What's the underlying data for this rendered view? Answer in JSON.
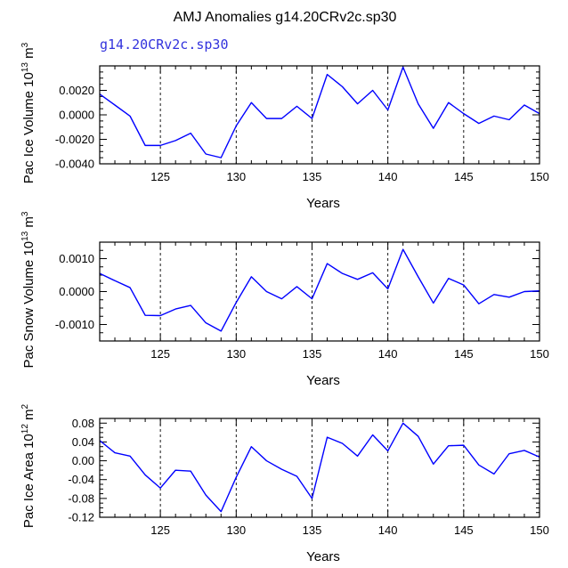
{
  "figure": {
    "title": "AMJ Anomalies g14.20CRv2c.sp30",
    "subtitle": "g14.20CRv2c.sp30",
    "line_color": "#0000ff",
    "subtitle_color": "#3333dd"
  },
  "chart_data": [
    {
      "type": "line",
      "ylabel_parts": [
        "Pac Ice Volume 10",
        "13",
        " m",
        "3"
      ],
      "xlabel": "Years",
      "xlim": [
        121,
        150
      ],
      "ylim": [
        -0.004,
        0.004
      ],
      "xticks": [
        125,
        130,
        135,
        140,
        145,
        150
      ],
      "yticks": [
        -0.004,
        -0.002,
        0.0,
        0.002
      ],
      "ytick_labels": [
        "-0.0040",
        "-0.0020",
        "0.0000",
        "0.0020"
      ],
      "vlines": [
        125,
        130,
        135,
        140,
        145
      ],
      "x": [
        121,
        122,
        123,
        124,
        125,
        126,
        127,
        128,
        129,
        130,
        131,
        132,
        133,
        134,
        135,
        136,
        137,
        138,
        139,
        140,
        141,
        142,
        143,
        144,
        145,
        146,
        147,
        148,
        149,
        150
      ],
      "y": [
        0.0017,
        0.0008,
        -0.0001,
        -0.0025,
        -0.0025,
        -0.0021,
        -0.0015,
        -0.0032,
        -0.0035,
        -0.0009,
        0.001,
        -0.0003,
        -0.0003,
        0.0007,
        -0.0003,
        0.0033,
        0.0023,
        0.0009,
        0.002,
        0.0004,
        0.0039,
        0.0009,
        -0.0011,
        0.001,
        0.0001,
        -0.0007,
        -0.0001,
        -0.0004,
        0.0008,
        0.0001
      ]
    },
    {
      "type": "line",
      "ylabel_parts": [
        "Pac Snow Volume 10",
        "13",
        " m",
        "3"
      ],
      "xlabel": "Years",
      "xlim": [
        121,
        150
      ],
      "ylim": [
        -0.0015,
        0.0015
      ],
      "xticks": [
        125,
        130,
        135,
        140,
        145,
        150
      ],
      "yticks": [
        -0.001,
        0.0,
        0.001
      ],
      "ytick_labels": [
        "-0.0010",
        "0.0000",
        "0.0010"
      ],
      "vlines": [
        125,
        130,
        135,
        140,
        145
      ],
      "x": [
        121,
        122,
        123,
        124,
        125,
        126,
        127,
        128,
        129,
        130,
        131,
        132,
        133,
        134,
        135,
        136,
        137,
        138,
        139,
        140,
        141,
        142,
        143,
        144,
        145,
        146,
        147,
        148,
        149,
        150
      ],
      "y": [
        0.00055,
        0.00033,
        0.00012,
        -0.00072,
        -0.00073,
        -0.00053,
        -0.00042,
        -0.00095,
        -0.0012,
        -0.00033,
        0.00045,
        0.0,
        -0.00022,
        0.00015,
        -0.00022,
        0.00085,
        0.00055,
        0.00037,
        0.00057,
        8e-05,
        0.00128,
        0.00045,
        -0.00035,
        0.0004,
        0.0002,
        -0.00037,
        -9e-05,
        -0.00017,
        0.0,
        2e-05
      ]
    },
    {
      "type": "line",
      "ylabel_parts": [
        "Pac Ice Area 10",
        "12",
        " m",
        "2"
      ],
      "xlabel": "Years",
      "xlim": [
        121,
        150
      ],
      "ylim": [
        -0.12,
        0.09
      ],
      "xticks": [
        125,
        130,
        135,
        140,
        145,
        150
      ],
      "yticks": [
        -0.12,
        -0.08,
        -0.04,
        0.0,
        0.04,
        0.08
      ],
      "ytick_labels": [
        "-0.12",
        "-0.08",
        "-0.04",
        "0.00",
        "0.04",
        "0.08"
      ],
      "vlines": [
        125,
        130,
        135,
        140,
        145
      ],
      "x": [
        121,
        122,
        123,
        124,
        125,
        126,
        127,
        128,
        129,
        130,
        131,
        132,
        133,
        134,
        135,
        136,
        137,
        138,
        139,
        140,
        141,
        142,
        143,
        144,
        145,
        146,
        147,
        148,
        149,
        150
      ],
      "y": [
        0.043,
        0.017,
        0.01,
        -0.03,
        -0.058,
        -0.02,
        -0.022,
        -0.073,
        -0.108,
        -0.035,
        0.03,
        0.0,
        -0.018,
        -0.033,
        -0.08,
        0.05,
        0.037,
        0.01,
        0.055,
        0.021,
        0.08,
        0.052,
        -0.007,
        0.032,
        0.033,
        -0.009,
        -0.028,
        0.015,
        0.022,
        0.008
      ]
    }
  ]
}
